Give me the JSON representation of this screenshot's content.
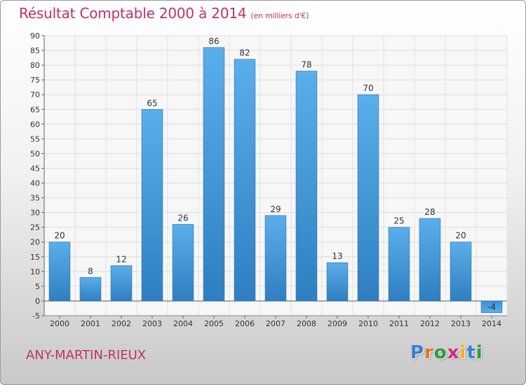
{
  "header": {
    "title": "Résultat Comptable 2000 à 2014",
    "subtitle": "(en milliers d'€)"
  },
  "footer": {
    "commune": "ANY-MARTIN-RIEUX",
    "logo_letters": [
      "P",
      "r",
      "o",
      "x",
      "i",
      "t",
      "i"
    ],
    "logo_colors": [
      "#3a7fd0",
      "#e0761e",
      "#2e9a3e",
      "#d62b7a",
      "#f0b51a",
      "#3a7fd0",
      "#2e9a3e"
    ]
  },
  "chart_data": {
    "type": "bar",
    "title": "Résultat Comptable 2000 à 2014",
    "subtitle": "(en milliers d'€)",
    "xlabel": "",
    "ylabel": "",
    "categories": [
      "2000",
      "2001",
      "2002",
      "2003",
      "2004",
      "2005",
      "2006",
      "2007",
      "2008",
      "2009",
      "2010",
      "2011",
      "2012",
      "2013",
      "2014"
    ],
    "values": [
      20,
      8,
      12,
      65,
      26,
      86,
      82,
      29,
      78,
      13,
      70,
      25,
      28,
      20,
      -4
    ],
    "data_labels": [
      "20",
      "8",
      "12",
      "65",
      "26",
      "86",
      "82",
      "29",
      "78",
      "13",
      "70",
      "25",
      "28",
      "20",
      "-4"
    ],
    "ylim": [
      -5,
      90
    ],
    "yticks": [
      -5,
      0,
      5,
      10,
      15,
      20,
      25,
      30,
      35,
      40,
      45,
      50,
      55,
      60,
      65,
      70,
      75,
      80,
      85,
      90
    ],
    "grid": true,
    "legend": "none",
    "bar_color_light": "#5aaeea",
    "bar_color_dark": "#2f7fc0"
  }
}
